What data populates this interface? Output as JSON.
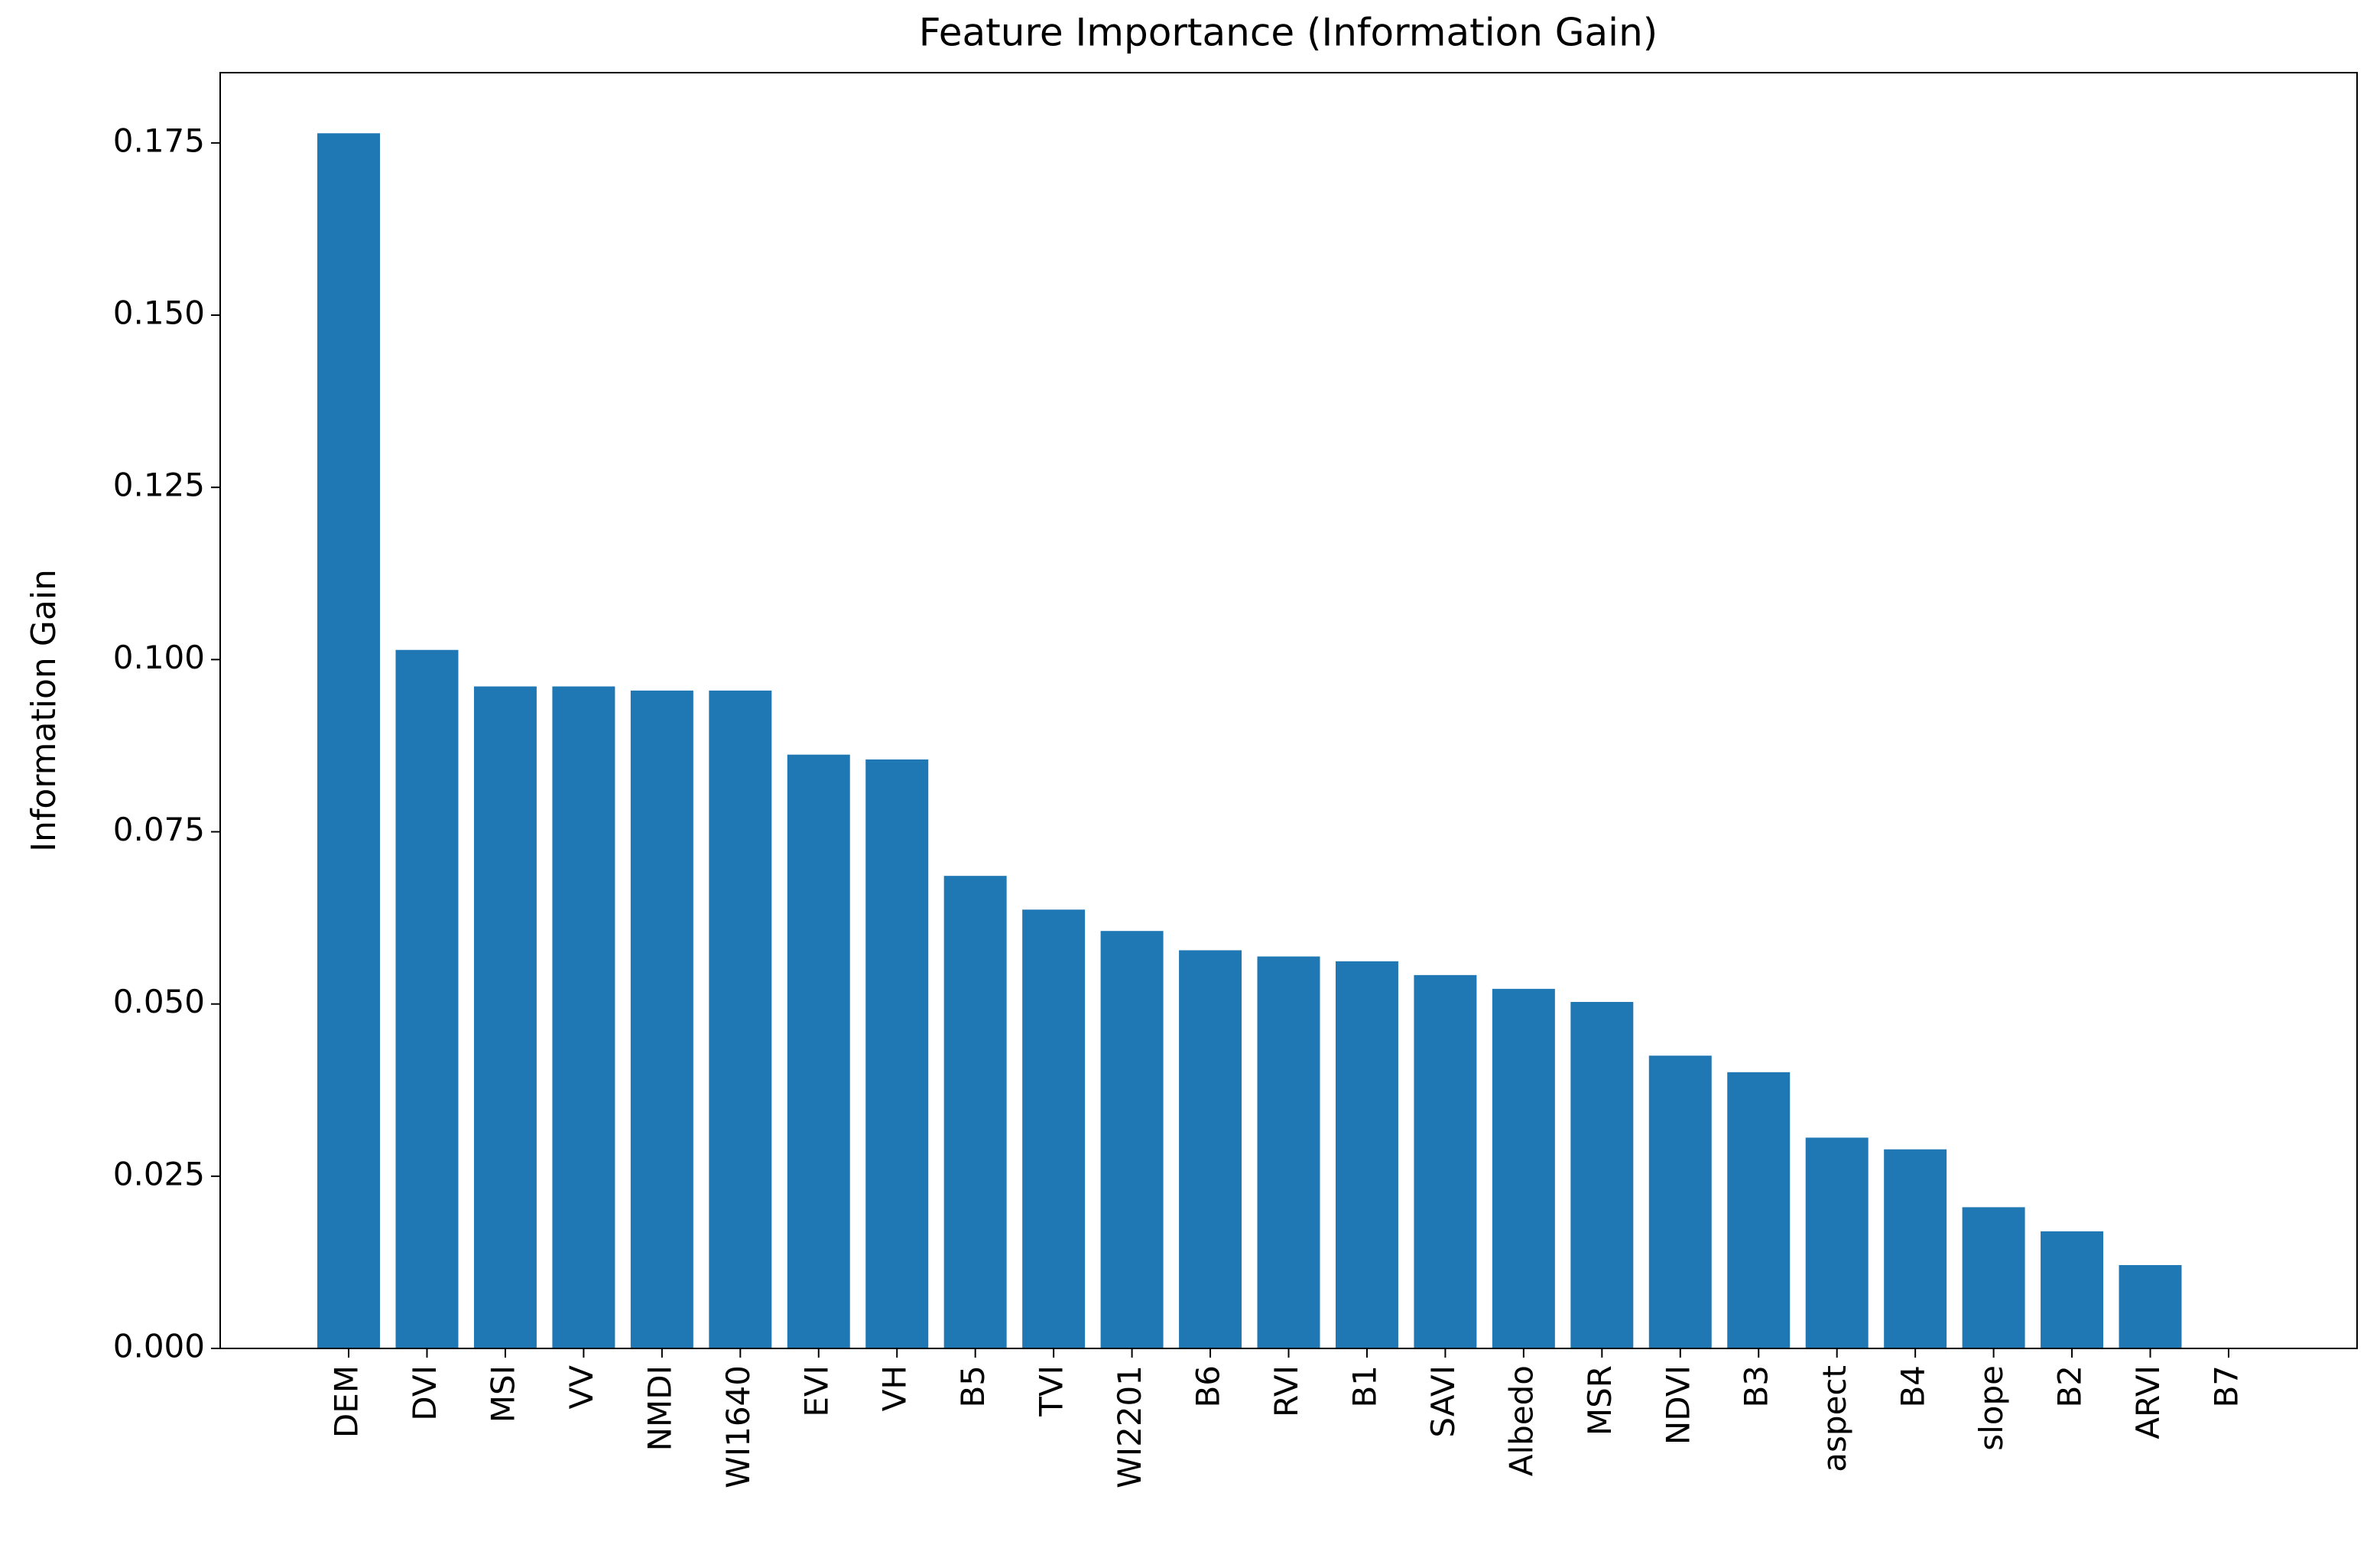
{
  "chart_data": {
    "type": "bar",
    "title": "Feature Importance (Information Gain)",
    "y_label": "Information Gain",
    "categories": [
      "DEM",
      "DVI",
      "MSI",
      "VV",
      "NMDI",
      "WI1640",
      "EVI",
      "VH",
      "B5",
      "TVI",
      "WI2201",
      "B6",
      "RVI",
      "B1",
      "SAVI",
      "Albedo",
      "MSR",
      "NDVI",
      "B3",
      "aspect",
      "B4",
      "slope",
      "B2",
      "ARVI",
      "B7"
    ],
    "values": [
      0.1764,
      0.1014,
      0.0961,
      0.0961,
      0.0955,
      0.0955,
      0.0862,
      0.0855,
      0.0686,
      0.0637,
      0.0606,
      0.0578,
      0.0569,
      0.0562,
      0.0542,
      0.0522,
      0.0503,
      0.0425,
      0.0401,
      0.0306,
      0.0289,
      0.0205,
      0.017,
      0.0121,
      0.0
    ],
    "color": "#1f77b4",
    "ylim": [
      0,
      0.1852
    ],
    "yticks": [
      {
        "value": 0,
        "label": "0.000"
      },
      {
        "value": 0.025,
        "label": "0.025"
      },
      {
        "value": 0.05,
        "label": "0.050"
      },
      {
        "value": 0.075,
        "label": "0.075"
      },
      {
        "value": 0.1,
        "label": "0.100"
      },
      {
        "value": 0.125,
        "label": "0.125"
      },
      {
        "value": 0.15,
        "label": "0.150"
      },
      {
        "value": 0.175,
        "label": "0.175"
      }
    ],
    "grid": false
  }
}
